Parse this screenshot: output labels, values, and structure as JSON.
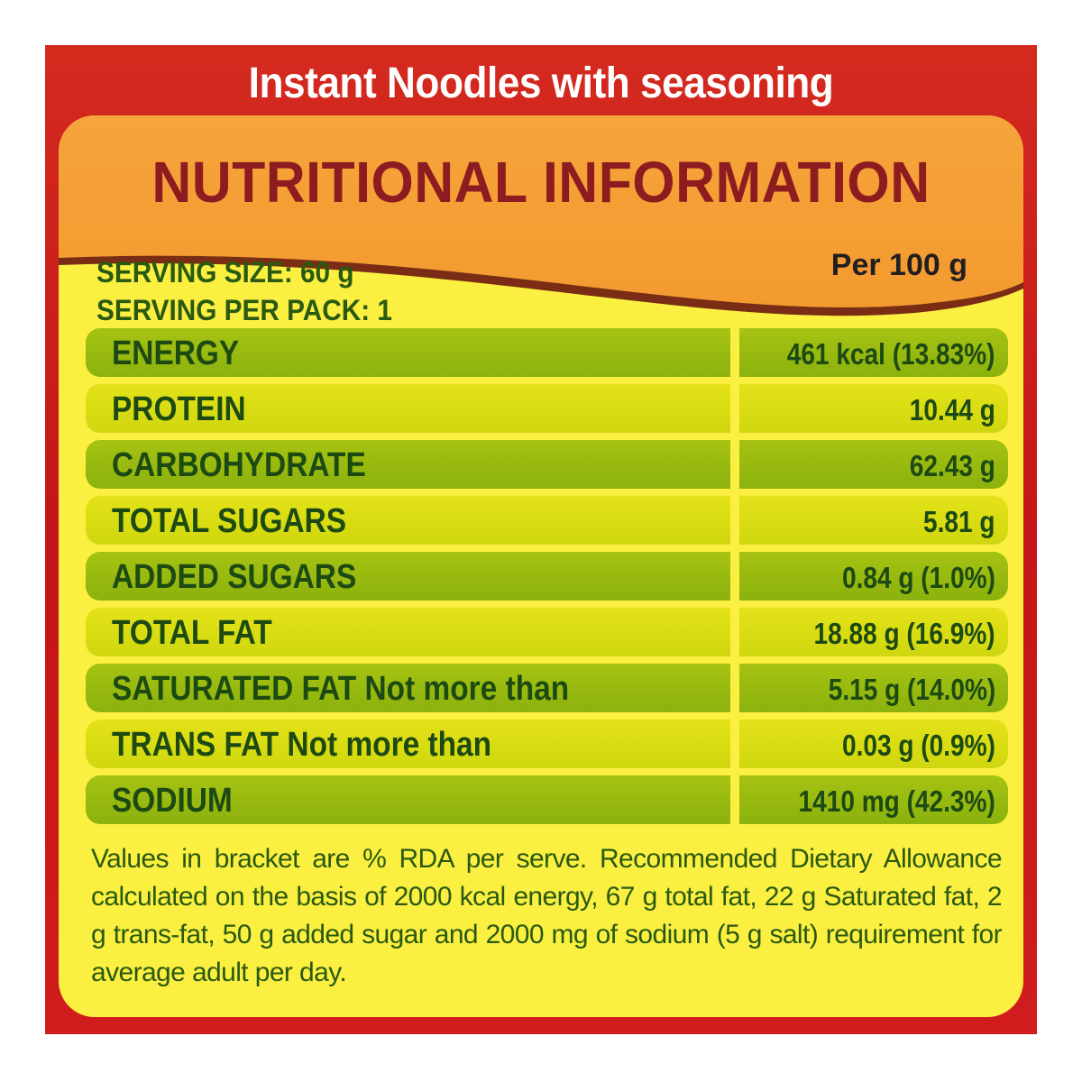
{
  "product": {
    "title": "Instant Noodles with seasoning"
  },
  "label": {
    "heading": "NUTRITIONAL INFORMATION",
    "per_label": "Per 100 g",
    "serving_size": "SERVING SIZE: 60 g",
    "serving_per_pack": "SERVING PER PACK: 1"
  },
  "nutrients": [
    {
      "name": "ENERGY",
      "value": "461 kcal (13.83%)"
    },
    {
      "name": "PROTEIN",
      "value": "10.44 g"
    },
    {
      "name": "CARBOHYDRATE",
      "value": "62.43 g"
    },
    {
      "name": "TOTAL SUGARS",
      "value": "5.81 g"
    },
    {
      "name": "ADDED SUGARS",
      "value": "0.84 g (1.0%)"
    },
    {
      "name": "TOTAL FAT",
      "value": "18.88 g (16.9%)"
    },
    {
      "name": "SATURATED FAT Not more than",
      "value": "5.15 g (14.0%)"
    },
    {
      "name": "TRANS FAT Not more than",
      "value": "0.03 g (0.9%)"
    },
    {
      "name": "SODIUM",
      "value": "1410 mg (42.3%)"
    }
  ],
  "footnote": "Values in bracket are % RDA per serve. Recommended Dietary Allowance calculated on the basis of 2000 kcal energy, 67 g total fat, 22 g Saturated fat, 2 g trans-fat, 50 g added sugar and 2000 mg of sodium (5 g salt) requirement for average adult per day.",
  "colors": {
    "frame_red": "#c4151a",
    "panel_yellow": "#fbef42",
    "banner_orange": "#f5a23a",
    "heading_maroon": "#8d1c20",
    "row_green": "#9bbc10",
    "row_lime": "#d9dc12",
    "text_green": "#1c4a12"
  }
}
